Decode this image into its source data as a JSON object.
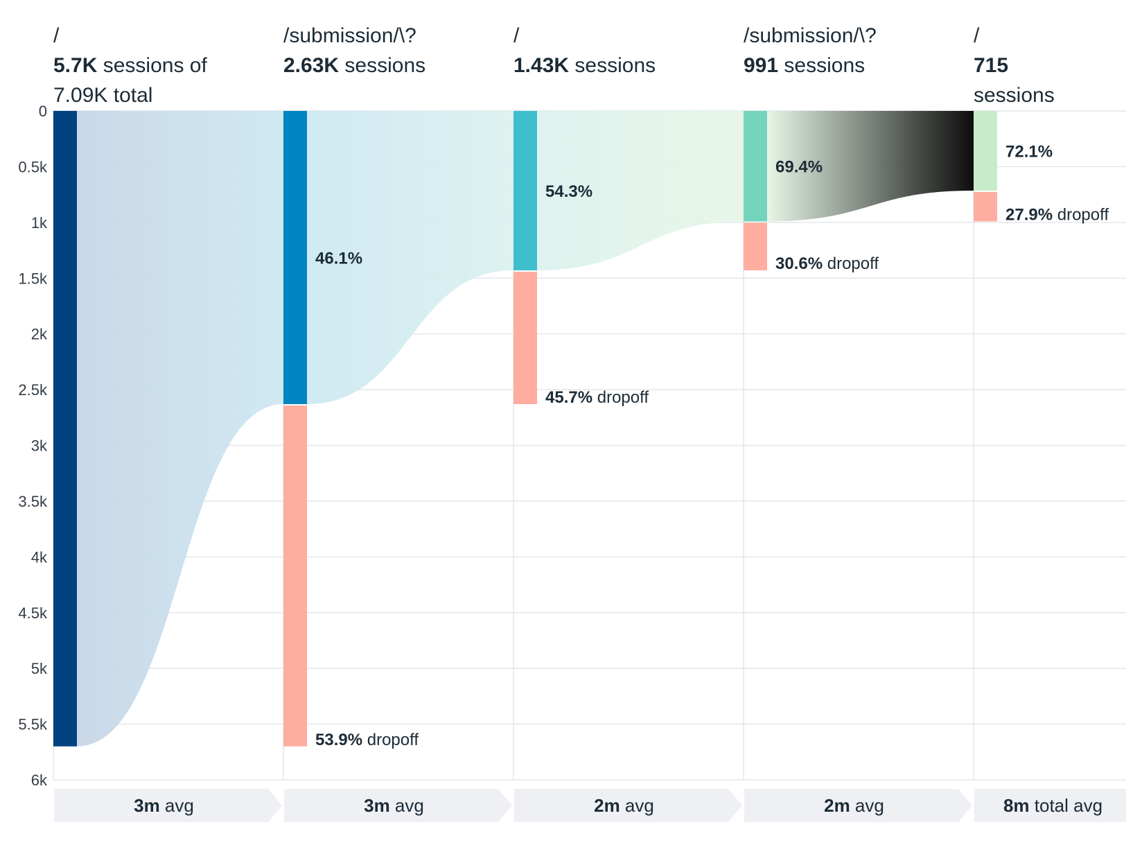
{
  "chart_data": {
    "type": "funnel",
    "y_ticks": [
      "0",
      "0.5k",
      "1k",
      "1.5k",
      "2k",
      "2.5k",
      "3k",
      "3.5k",
      "4k",
      "4.5k",
      "5k",
      "5.5k",
      "6k"
    ],
    "ylim": [
      0,
      6000
    ],
    "grid": true,
    "steps": [
      {
        "path": "/",
        "count_text": "5.7K",
        "sessions_text": "sessions of",
        "total_text": "7.09K total",
        "value": 5700,
        "dropoff_value": 0,
        "conversion_pct": "",
        "dropoff_pct": "",
        "avg_value": "3m",
        "avg_text": "avg",
        "color": "#00427f"
      },
      {
        "path": "/submission/\\?",
        "count_text": "2.63K",
        "sessions_text": "sessions",
        "total_text": "",
        "value": 2630,
        "dropoff_value": 3070,
        "conversion_pct": "46.1%",
        "dropoff_pct": "53.9%",
        "dropoff_word": "dropoff",
        "avg_value": "3m",
        "avg_text": "avg",
        "color": "#0085c2"
      },
      {
        "path": "/",
        "count_text": "1.43K",
        "sessions_text": "sessions",
        "total_text": "",
        "value": 1430,
        "dropoff_value": 1200,
        "conversion_pct": "54.3%",
        "dropoff_pct": "45.7%",
        "dropoff_word": "dropoff",
        "avg_value": "2m",
        "avg_text": "avg",
        "color": "#3ebfcb"
      },
      {
        "path": "/submission/\\?",
        "count_text": "991",
        "sessions_text": "sessions",
        "total_text": "",
        "value": 991,
        "dropoff_value": 439,
        "conversion_pct": "69.4%",
        "dropoff_pct": "30.6%",
        "dropoff_word": "dropoff",
        "avg_value": "2m",
        "avg_text": "avg",
        "color": "#74d3bd"
      },
      {
        "path": "/",
        "count_text": "715",
        "sessions_text": "sessions",
        "total_text": "",
        "value": 715,
        "dropoff_value": 276,
        "conversion_pct": "72.1%",
        "dropoff_pct": "27.9%",
        "dropoff_word": "dropoff",
        "avg_value": "8m",
        "avg_text": "total avg",
        "color": "#c8ecc9"
      }
    ],
    "dropoff_color": "#ffada0",
    "flow_colors": [
      "#c7d6e7",
      "#cde8f2",
      "#dcf2ef",
      "#e6f6e6"
    ]
  }
}
